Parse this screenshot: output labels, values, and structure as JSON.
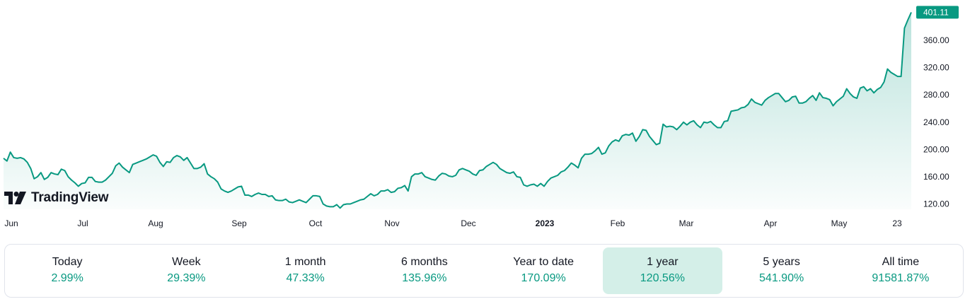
{
  "chart_data": {
    "type": "area",
    "title": "",
    "xlabel": "",
    "ylabel": "",
    "ylim": [
      110,
      410
    ],
    "y_ticks": [
      {
        "value": 120,
        "label": "120.00"
      },
      {
        "value": 160,
        "label": "160.00"
      },
      {
        "value": 200,
        "label": "200.00"
      },
      {
        "value": 240,
        "label": "240.00"
      },
      {
        "value": 280,
        "label": "280.00"
      },
      {
        "value": 320,
        "label": "320.00"
      },
      {
        "value": 360,
        "label": "360.00"
      }
    ],
    "x_ticks": [
      {
        "label": "Jun",
        "bold": false
      },
      {
        "label": "Jul",
        "bold": false
      },
      {
        "label": "Aug",
        "bold": false
      },
      {
        "label": "Sep",
        "bold": false
      },
      {
        "label": "Oct",
        "bold": false
      },
      {
        "label": "Nov",
        "bold": false
      },
      {
        "label": "Dec",
        "bold": false
      },
      {
        "label": "2023",
        "bold": true
      },
      {
        "label": "Feb",
        "bold": false
      },
      {
        "label": "Mar",
        "bold": false
      },
      {
        "label": "Apr",
        "bold": false
      },
      {
        "label": "May",
        "bold": false
      },
      {
        "label": "23",
        "bold": false
      }
    ],
    "last_price": "401.11",
    "line_color": "#089981",
    "series": [
      {
        "values": [
          187,
          183,
          196,
          188,
          187,
          188,
          186,
          181,
          172,
          157,
          160,
          166,
          156,
          159,
          166,
          164,
          163,
          171,
          169,
          160,
          155,
          151,
          146,
          150,
          151,
          159,
          159,
          153,
          152,
          152,
          155,
          160,
          165,
          176,
          180,
          174,
          170,
          166,
          178,
          180,
          182,
          184,
          186,
          189,
          192,
          190,
          181,
          175,
          182,
          181,
          188,
          191,
          189,
          184,
          188,
          180,
          172,
          172,
          174,
          179,
          164,
          160,
          157,
          152,
          142,
          139,
          137,
          139,
          142,
          145,
          146,
          133,
          133,
          131,
          134,
          136,
          134,
          134,
          131,
          132,
          126,
          125,
          125,
          127,
          123,
          122,
          124,
          126,
          124,
          122,
          127,
          132,
          132,
          131,
          120,
          117,
          116,
          116,
          119,
          114,
          119,
          120,
          120,
          122,
          124,
          126,
          127,
          131,
          135,
          132,
          134,
          139,
          139,
          141,
          137,
          138,
          143,
          144,
          147,
          139,
          160,
          164,
          164,
          166,
          160,
          158,
          156,
          155,
          161,
          165,
          164,
          161,
          160,
          162,
          170,
          172,
          170,
          168,
          164,
          162,
          169,
          170,
          175,
          178,
          181,
          178,
          172,
          169,
          166,
          165,
          167,
          160,
          159,
          148,
          146,
          148,
          149,
          146,
          150,
          146,
          153,
          158,
          160,
          162,
          167,
          169,
          174,
          180,
          177,
          173,
          187,
          193,
          193,
          194,
          198,
          203,
          193,
          195,
          205,
          211,
          214,
          212,
          220,
          222,
          221,
          224,
          212,
          219,
          229,
          228,
          219,
          213,
          207,
          209,
          237,
          233,
          234,
          233,
          229,
          234,
          240,
          236,
          240,
          242,
          236,
          232,
          240,
          239,
          241,
          236,
          232,
          232,
          241,
          242,
          256,
          257,
          258,
          261,
          262,
          266,
          274,
          269,
          267,
          265,
          272,
          276,
          279,
          282,
          282,
          276,
          270,
          272,
          277,
          278,
          268,
          268,
          270,
          275,
          279,
          272,
          283,
          276,
          275,
          273,
          264,
          270,
          274,
          278,
          289,
          282,
          277,
          275,
          290,
          292,
          286,
          289,
          283,
          288,
          291,
          299,
          318,
          313,
          310,
          307,
          307,
          378,
          390,
          401.11
        ]
      }
    ]
  },
  "logo": {
    "text": "TradingView",
    "icon": "tradingview-logo-icon"
  },
  "periods": [
    {
      "label": "Today",
      "value": "2.99%",
      "selected": false
    },
    {
      "label": "Week",
      "value": "29.39%",
      "selected": false
    },
    {
      "label": "1 month",
      "value": "47.33%",
      "selected": false
    },
    {
      "label": "6 months",
      "value": "135.96%",
      "selected": false
    },
    {
      "label": "Year to date",
      "value": "170.09%",
      "selected": false
    },
    {
      "label": "1 year",
      "value": "120.56%",
      "selected": true
    },
    {
      "label": "5 years",
      "value": "541.90%",
      "selected": false
    },
    {
      "label": "All time",
      "value": "91581.87%",
      "selected": false
    }
  ]
}
